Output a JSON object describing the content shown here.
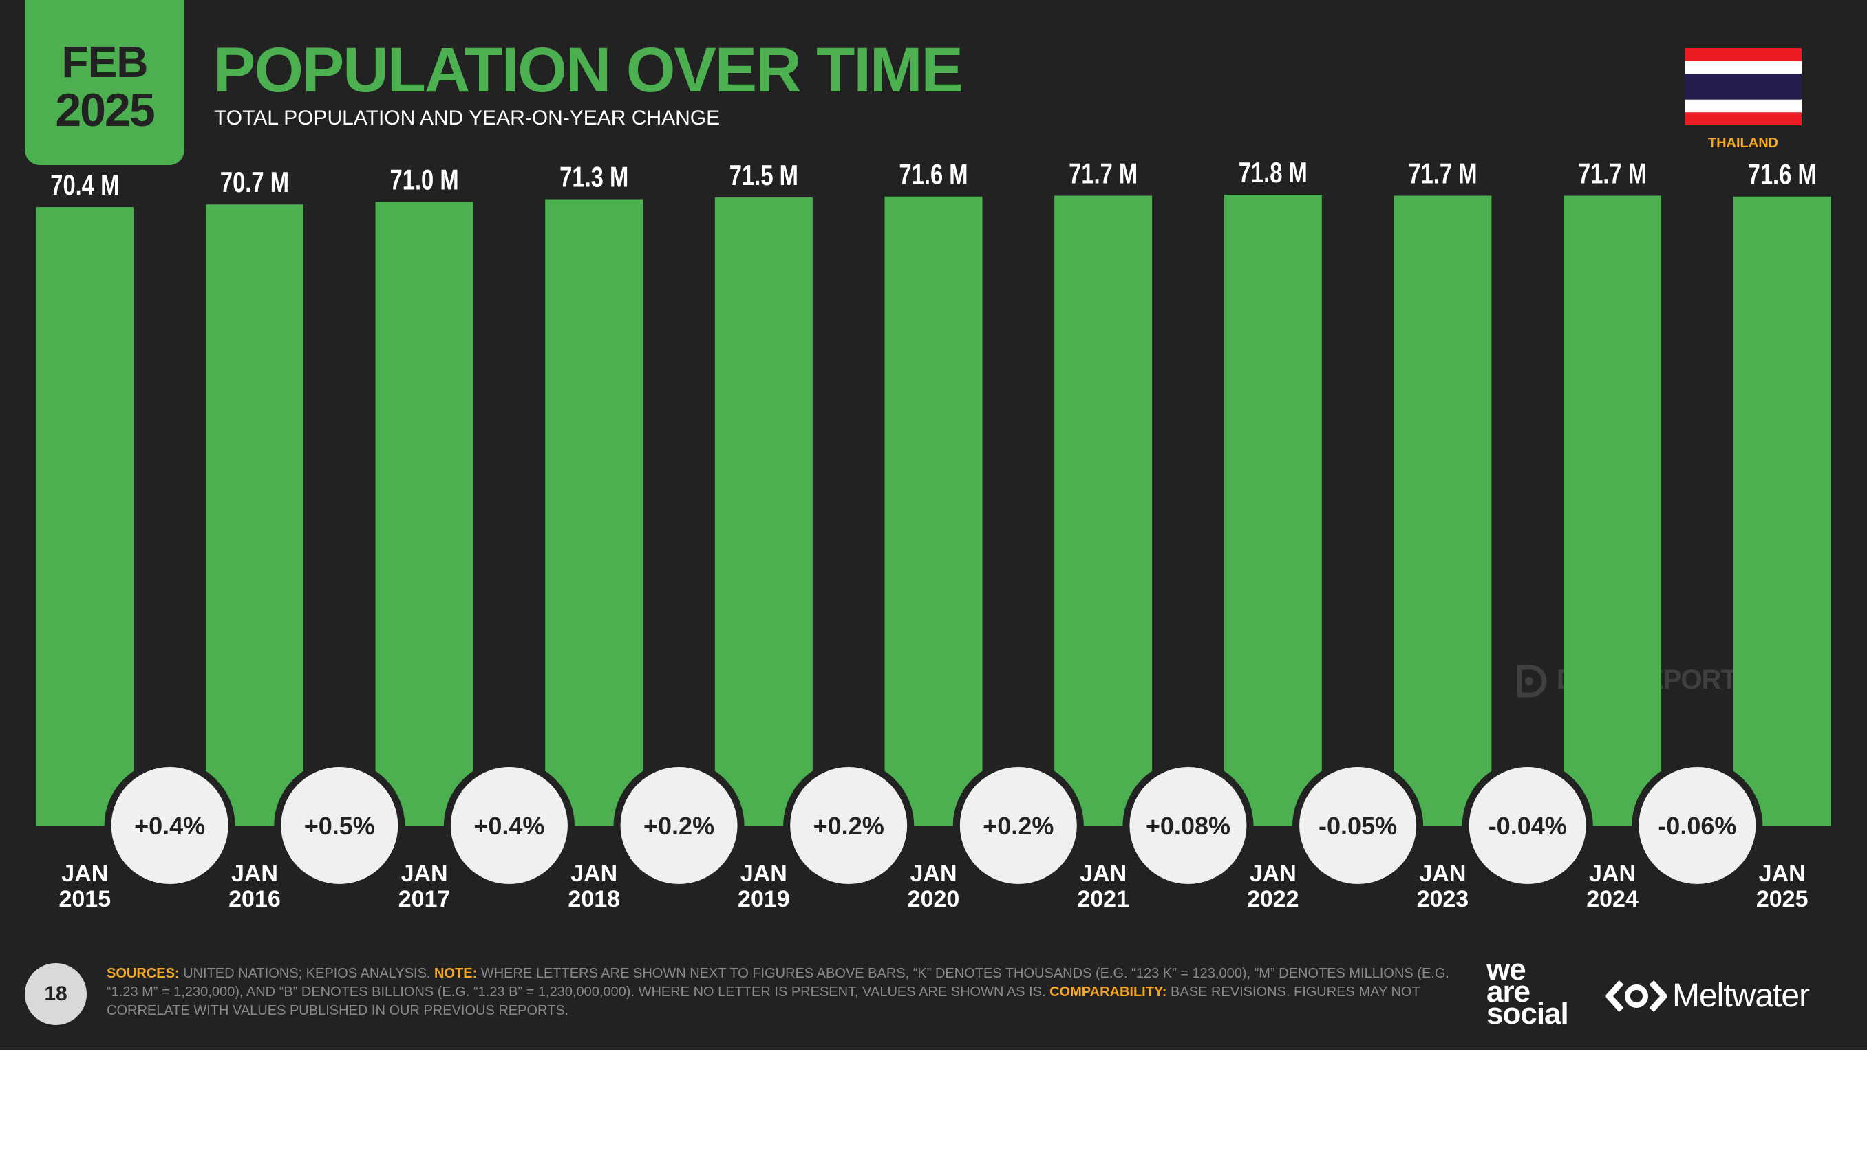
{
  "header": {
    "month": "FEB",
    "year": "2025",
    "title": "POPULATION OVER TIME",
    "subtitle": "TOTAL POPULATION AND YEAR-ON-YEAR CHANGE"
  },
  "country": {
    "name": "THAILAND",
    "flag_colors": [
      "#ed1c24",
      "#ffffff",
      "#241d4f",
      "#ffffff",
      "#ed1c24"
    ]
  },
  "colors": {
    "accent": "#4cb050",
    "background": "#222222",
    "highlight": "#f7a823",
    "circle": "#f0f0f0"
  },
  "chart_data": {
    "type": "bar",
    "title": "POPULATION OVER TIME",
    "categories": [
      [
        "JAN",
        "2015"
      ],
      [
        "JAN",
        "2016"
      ],
      [
        "JAN",
        "2017"
      ],
      [
        "JAN",
        "2018"
      ],
      [
        "JAN",
        "2019"
      ],
      [
        "JAN",
        "2020"
      ],
      [
        "JAN",
        "2021"
      ],
      [
        "JAN",
        "2022"
      ],
      [
        "JAN",
        "2023"
      ],
      [
        "JAN",
        "2024"
      ],
      [
        "JAN",
        "2025"
      ]
    ],
    "values": [
      70.4,
      70.7,
      71.0,
      71.3,
      71.5,
      71.6,
      71.7,
      71.8,
      71.7,
      71.7,
      71.6
    ],
    "value_labels": [
      "70.4 M",
      "70.7 M",
      "71.0 M",
      "71.3 M",
      "71.5 M",
      "71.6 M",
      "71.7 M",
      "71.8 M",
      "71.7 M",
      "71.7 M",
      "71.6 M"
    ],
    "yoy_change": [
      "+0.4%",
      "+0.5%",
      "+0.4%",
      "+0.2%",
      "+0.2%",
      "+0.2%",
      "+0.08%",
      "-0.05%",
      "-0.04%",
      "-0.06%"
    ],
    "ylim": [
      0,
      74.4
    ],
    "grid": false,
    "legend": "none"
  },
  "watermark": {
    "text": "DATAREPORTAL",
    "icon": "datareportal-icon"
  },
  "footer": {
    "page_number": "18",
    "sources_label": "SOURCES:",
    "sources_text": " UNITED NATIONS; KEPIOS ANALYSIS. ",
    "note_label": "NOTE:",
    "note_text": " WHERE LETTERS ARE SHOWN NEXT TO FIGURES ABOVE BARS, “K” DENOTES THOUSANDS (E.G. “123 K” = 123,000), “M” DENOTES MILLIONS (E.G. “1.23 M” = 1,230,000), AND “B” DENOTES BILLIONS (E.G. “1.23 B” = 1,230,000,000). WHERE NO LETTER IS PRESENT, VALUES ARE SHOWN AS IS. ",
    "comparability_label": "COMPARABILITY:",
    "comparability_text": " BASE REVISIONS. FIGURES MAY NOT CORRELATE WITH VALUES PUBLISHED IN OUR PREVIOUS REPORTS.",
    "logo_we": "we",
    "logo_are": "are",
    "logo_social": "social",
    "logo_meltwater": "Meltwater"
  }
}
